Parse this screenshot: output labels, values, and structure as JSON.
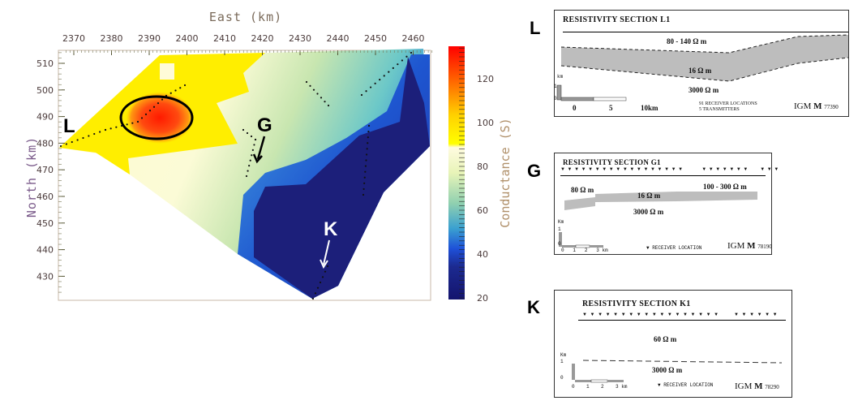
{
  "chart_data": {
    "type": "heatmap",
    "xlabel": "East (km)",
    "ylabel": "North (km)",
    "x_ticks": [
      2370,
      2380,
      2390,
      2400,
      2410,
      2420,
      2430,
      2440,
      2450,
      2460
    ],
    "y_ticks": [
      510,
      500,
      490,
      480,
      470,
      460,
      450,
      440,
      430
    ],
    "xlim": [
      2367,
      2466
    ],
    "ylim": [
      422,
      515
    ],
    "colorbar": {
      "label": "Conductance (S)",
      "ticks": [
        20,
        40,
        60,
        80,
        100,
        120
      ],
      "range": [
        18,
        135
      ],
      "colors": [
        "#14146e",
        "#1e3cc8",
        "#2e7be0",
        "#5fc0c8",
        "#a8dca0",
        "#f4f6c0",
        "#fffde0",
        "#ffff00",
        "#ffb000",
        "#ff5000",
        "#ff0000"
      ]
    },
    "annotations": [
      {
        "text": "L"
      },
      {
        "text": "G"
      },
      {
        "text": "K"
      }
    ],
    "highlight": "ellipse around conductance maximum near East 2393, North 488"
  },
  "sections": [
    {
      "marker": "L",
      "title": "RESISTIVITY SECTION L1",
      "upper": "80 - 140   Ω m",
      "middle": "16   Ω m",
      "lower": "3000   Ω m",
      "scale_unit": "km",
      "scale_v": [
        "1",
        "0"
      ],
      "scale_h": [
        "0",
        "5",
        "10km"
      ],
      "notes": [
        "91  RECEIVER LOCATIONS",
        "5  TRANSMITTERS"
      ],
      "logo": "IGM",
      "code": "77390"
    },
    {
      "marker": "G",
      "title": "RESISTIVITY SECTION   G1",
      "upper": "80  Ω m",
      "middle": "16 Ω m",
      "right": "100 - 300  Ω m",
      "lower": "3000 Ω m",
      "scale_unit": "Km",
      "scale_v": [
        "1",
        "0"
      ],
      "scale_h": [
        "0",
        "1",
        "2",
        "3 km"
      ],
      "notes": [
        "▼  RECEIVER LOCATION"
      ],
      "logo": "IGM",
      "code": "78190"
    },
    {
      "marker": "K",
      "title": "RESISTIVITY SECTION   K1",
      "upper": "60   Ω m",
      "lower": "3000  Ω m",
      "scale_unit": "Km",
      "scale_v": [
        "1",
        "0"
      ],
      "scale_h": [
        "0",
        "1",
        "2",
        "3 km"
      ],
      "notes": [
        "▼  RECEIVER LOCATION"
      ],
      "logo": "IGM",
      "code": "78290"
    }
  ]
}
